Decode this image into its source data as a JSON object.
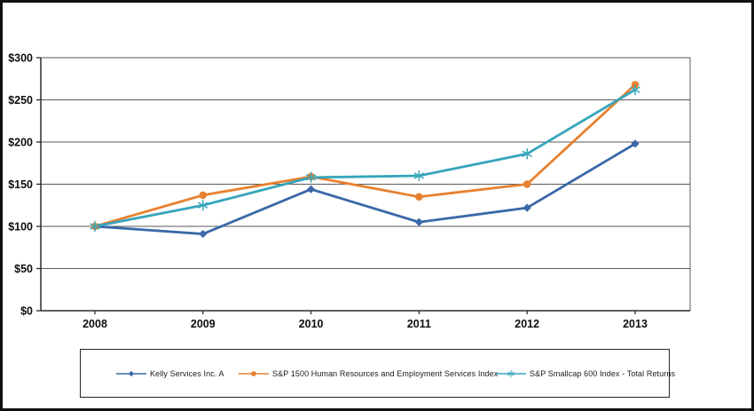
{
  "chart_data": {
    "type": "line",
    "title": "",
    "xlabel": "",
    "ylabel": "",
    "categories": [
      "2008",
      "2009",
      "2010",
      "2011",
      "2012",
      "2013"
    ],
    "series": [
      {
        "name": "Kelly Services Inc. A",
        "marker": "diamond",
        "color": "#3a68a8",
        "values": [
          100,
          91,
          144,
          105,
          122,
          198
        ]
      },
      {
        "name": "S&P 1500  Human Resources and Employment Services Index",
        "marker": "circle",
        "color": "#e8812f",
        "values": [
          100,
          137,
          159,
          135,
          150,
          268
        ]
      },
      {
        "name": "S&P Smallcap 600 Index - Total Returns",
        "marker": "star",
        "color": "#36a5bb",
        "values": [
          100,
          125,
          158,
          160,
          186,
          262
        ]
      }
    ],
    "ylim": [
      0,
      300
    ],
    "y_ticks": [
      0,
      50,
      100,
      150,
      200,
      250,
      300
    ],
    "y_tick_labels": [
      "$0",
      "$50",
      "$100",
      "$150",
      "$200",
      "$250",
      "$300"
    ],
    "grid": "horizontal",
    "legend_position": "bottom",
    "colors": {
      "gridline": "#595959",
      "axis": "#2b2b2b",
      "tick_label": "#0f0f0f",
      "frame_border": "#111111"
    }
  }
}
